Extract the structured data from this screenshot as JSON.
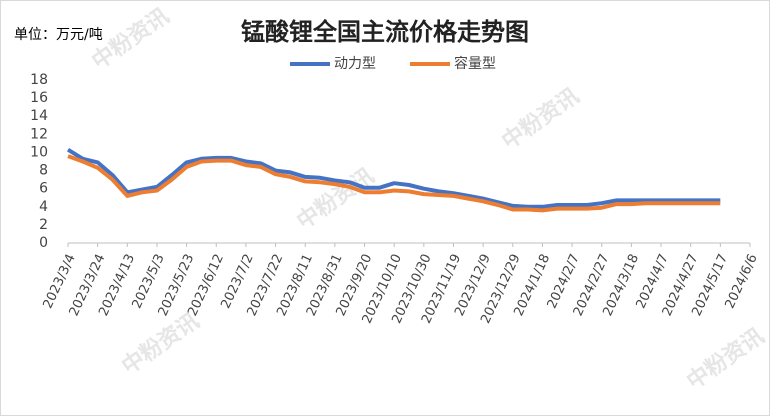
{
  "chart_data": {
    "type": "line",
    "title": "锰酸锂全国主流价格走势图",
    "unit_label": "单位：万元/吨",
    "watermark": "中粉资讯",
    "x": [
      "2023/3/4",
      "2023/3/14",
      "2023/3/24",
      "2023/4/3",
      "2023/4/13",
      "2023/4/23",
      "2023/5/3",
      "2023/5/13",
      "2023/5/23",
      "2023/6/2",
      "2023/6/12",
      "2023/6/22",
      "2023/7/2",
      "2023/7/12",
      "2023/7/22",
      "2023/8/1",
      "2023/8/11",
      "2023/8/21",
      "2023/8/31",
      "2023/9/10",
      "2023/9/20",
      "2023/9/30",
      "2023/10/10",
      "2023/10/20",
      "2023/10/30",
      "2023/11/9",
      "2023/11/19",
      "2023/11/29",
      "2023/12/9",
      "2023/12/19",
      "2023/12/29",
      "2024/1/8",
      "2024/1/18",
      "2024/1/28",
      "2024/2/7",
      "2024/2/17",
      "2024/2/27",
      "2024/3/8",
      "2024/3/18",
      "2024/3/28",
      "2024/4/7",
      "2024/4/17",
      "2024/4/27",
      "2024/5/7",
      "2024/5/17"
    ],
    "series": [
      {
        "name": "动力型",
        "color": "#4472c4",
        "values": [
          10.3,
          9.3,
          8.9,
          7.5,
          5.6,
          5.9,
          6.2,
          7.5,
          8.9,
          9.3,
          9.4,
          9.4,
          9.0,
          8.8,
          8.0,
          7.8,
          7.3,
          7.2,
          6.9,
          6.7,
          6.1,
          6.1,
          6.6,
          6.4,
          6.0,
          5.7,
          5.5,
          5.2,
          4.9,
          4.5,
          4.1,
          4.0,
          4.0,
          4.2,
          4.2,
          4.2,
          4.4,
          4.7,
          4.7,
          4.7,
          4.7,
          4.7,
          4.7,
          4.7,
          4.7
        ]
      },
      {
        "name": "容量型",
        "color": "#ed7d31",
        "values": [
          9.6,
          9.0,
          8.3,
          7.0,
          5.2,
          5.6,
          5.8,
          7.0,
          8.4,
          9.0,
          9.1,
          9.1,
          8.6,
          8.4,
          7.6,
          7.3,
          6.8,
          6.7,
          6.5,
          6.2,
          5.6,
          5.6,
          5.8,
          5.7,
          5.4,
          5.3,
          5.2,
          4.9,
          4.6,
          4.2,
          3.7,
          3.7,
          3.6,
          3.8,
          3.8,
          3.8,
          3.9,
          4.3,
          4.3,
          4.4,
          4.4,
          4.4,
          4.4,
          4.4,
          4.4
        ]
      }
    ],
    "xlim": [
      "2023/3/4",
      "2024/6/6"
    ],
    "xticks": [
      "2023/3/4",
      "2023/3/24",
      "2023/4/13",
      "2023/5/3",
      "2023/5/23",
      "2023/6/12",
      "2023/7/2",
      "2023/7/22",
      "2023/8/11",
      "2023/8/31",
      "2023/9/20",
      "2023/10/10",
      "2023/10/30",
      "2023/11/19",
      "2023/12/9",
      "2023/12/29",
      "2024/1/18",
      "2024/2/7",
      "2024/2/27",
      "2024/3/18",
      "2024/4/7",
      "2024/4/27",
      "2024/5/17",
      "2024/6/6"
    ],
    "ylim": [
      0,
      18
    ],
    "yticks": [
      0,
      2,
      4,
      6,
      8,
      10,
      12,
      14,
      16,
      18
    ],
    "grid": false,
    "legend": "top"
  }
}
